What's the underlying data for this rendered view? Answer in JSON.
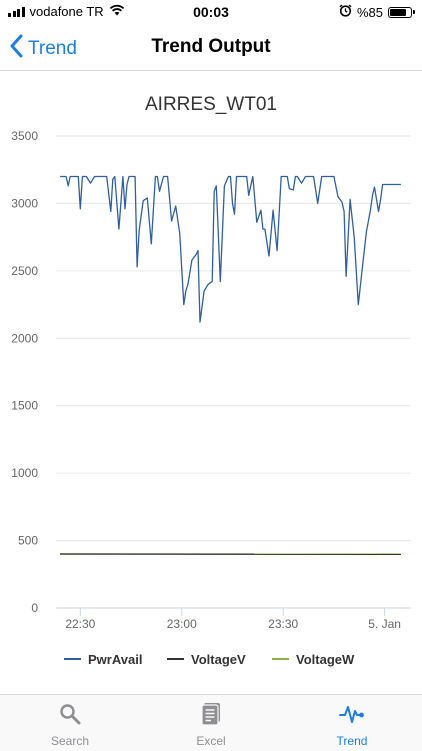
{
  "status": {
    "carrier": "vodafone TR",
    "time": "00:03",
    "battery_text": "%85"
  },
  "nav": {
    "back_label": "Trend",
    "title": "Trend Output"
  },
  "chart_data": {
    "type": "line",
    "title": "AIRRES_WT01",
    "xlabel": "",
    "ylabel": "",
    "ylim": [
      0,
      3500
    ],
    "yticks": [
      0,
      500,
      1000,
      1500,
      2000,
      2500,
      3000,
      3500
    ],
    "xlim": [
      0,
      175
    ],
    "xticks": [
      {
        "x": 12,
        "label": "22:30"
      },
      {
        "x": 62,
        "label": "23:00"
      },
      {
        "x": 112,
        "label": "23:30"
      },
      {
        "x": 162,
        "label": "5. Jan"
      }
    ],
    "grid": true,
    "legend_position": "bottom",
    "series": [
      {
        "name": "PwrAvail",
        "color": "#2f5fa1",
        "x": [
          2,
          5,
          6,
          7,
          8,
          10,
          11,
          12,
          13,
          14,
          15,
          17,
          19,
          20,
          21,
          23,
          25,
          27,
          28,
          29,
          31,
          33,
          34,
          35,
          36,
          38,
          39,
          40,
          41,
          43,
          45,
          47,
          49,
          50,
          51,
          53,
          55,
          57,
          59,
          61,
          63,
          64,
          65,
          67,
          69,
          70,
          71,
          73,
          75,
          77,
          78,
          79,
          81,
          83,
          85,
          86,
          87,
          88,
          89,
          91,
          93,
          94,
          95,
          97,
          99,
          101,
          102,
          103,
          105,
          107,
          109,
          111,
          113,
          114,
          115,
          117,
          118,
          119,
          121,
          123,
          125,
          127,
          129,
          131,
          133,
          135,
          137,
          139,
          141,
          142,
          143,
          145,
          147,
          149,
          151,
          153,
          155,
          156,
          157,
          159,
          160,
          161,
          163,
          165,
          167,
          169,
          170
        ],
        "y": [
          3200,
          3200,
          3130,
          3200,
          3200,
          3200,
          3200,
          2960,
          3200,
          3200,
          3200,
          3150,
          3200,
          3200,
          3200,
          3200,
          3200,
          2940,
          3180,
          3200,
          2810,
          3200,
          2960,
          3140,
          3200,
          3200,
          3200,
          2530,
          2800,
          3020,
          3040,
          2700,
          3200,
          3200,
          3090,
          3200,
          3200,
          2870,
          2980,
          2780,
          2250,
          2350,
          2400,
          2580,
          2620,
          2650,
          2120,
          2350,
          2400,
          2420,
          3090,
          3130,
          2420,
          3130,
          3200,
          3200,
          3000,
          2920,
          3200,
          3200,
          3200,
          3200,
          3060,
          3200,
          2860,
          2950,
          2810,
          2810,
          2610,
          2950,
          2650,
          3200,
          3200,
          3200,
          3110,
          3100,
          3200,
          3200,
          3150,
          3200,
          3200,
          3200,
          3000,
          3200,
          3200,
          3200,
          3200,
          3050,
          3010,
          2940,
          2460,
          3030,
          2750,
          2250,
          2520,
          2790,
          2950,
          3060,
          3120,
          2940,
          3030,
          3140,
          3140,
          3140,
          3140,
          3140,
          3140
        ]
      },
      {
        "name": "VoltageV",
        "color": "#333333",
        "x": [
          2,
          170
        ],
        "y": [
          400,
          398
        ]
      },
      {
        "name": "VoltageW",
        "color": "#8ab04b",
        "x": [
          2,
          170
        ],
        "y": [
          402,
          400
        ]
      }
    ]
  },
  "tabs": [
    {
      "label": "Search",
      "icon": "search-icon"
    },
    {
      "label": "Excel",
      "icon": "document-icon"
    },
    {
      "label": "Trend",
      "icon": "pulse-icon"
    }
  ]
}
